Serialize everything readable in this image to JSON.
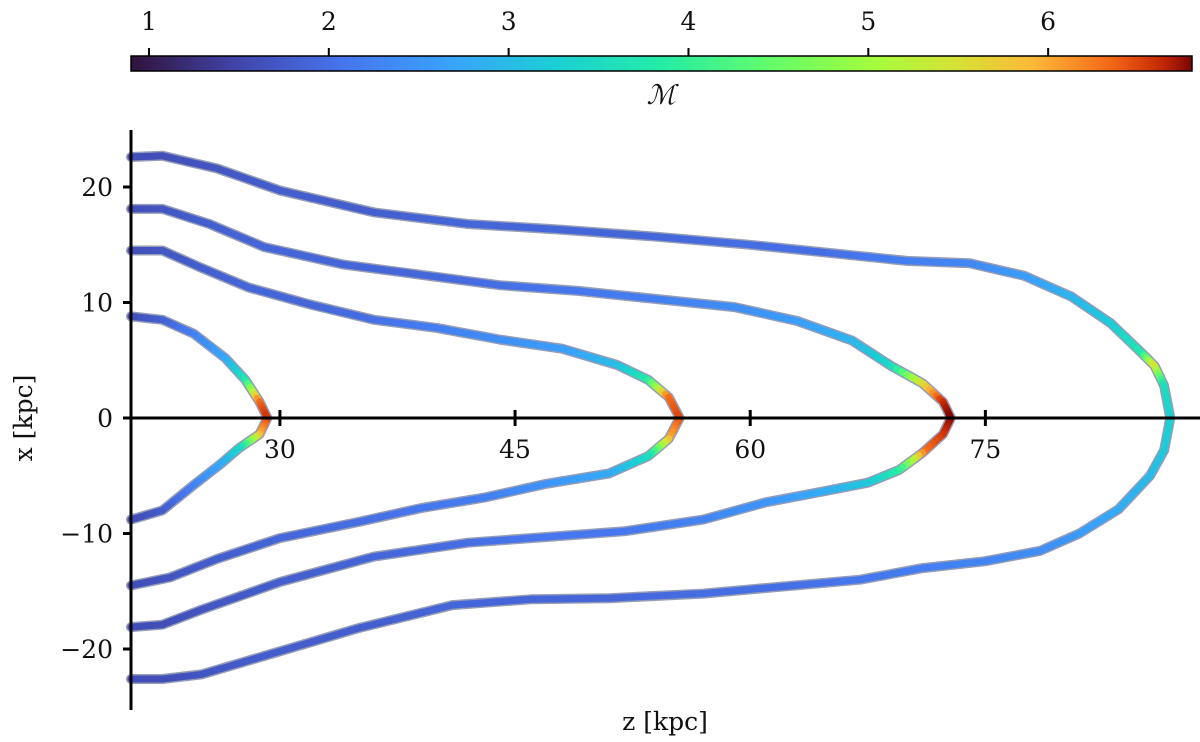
{
  "chart_data": {
    "type": "line",
    "title": "",
    "xlabel": "z [kpc]",
    "ylabel": "x [kpc]",
    "xlim": [
      20.5,
      88.5
    ],
    "ylim": [
      -25,
      25
    ],
    "x_ticks": [
      30,
      45,
      60,
      75
    ],
    "y_ticks": [
      20,
      10,
      0,
      -10,
      -20
    ],
    "y_tick_labels": [
      "20",
      "10",
      "0",
      "−10",
      "−20"
    ],
    "grid": false,
    "colorbar": {
      "label": "ℳ",
      "range": [
        0.9,
        6.8
      ],
      "ticks": [
        1,
        2,
        3,
        4,
        5,
        6
      ],
      "colormap": "turbo",
      "placement": "top"
    },
    "series": [
      {
        "tip_z": 29.2,
        "points": [
          [
            20.5,
            8.8,
            1.6
          ],
          [
            22.5,
            8.5,
            1.8
          ],
          [
            24.5,
            7.3,
            2.2
          ],
          [
            26.5,
            5.2,
            2.7
          ],
          [
            27.8,
            3.3,
            3.6
          ],
          [
            28.7,
            1.4,
            6.3
          ],
          [
            29.2,
            0.0,
            6.6
          ],
          [
            28.7,
            -1.4,
            6.0
          ],
          [
            27.4,
            -2.6,
            3.5
          ],
          [
            26.2,
            -4.0,
            2.8
          ],
          [
            24.5,
            -5.8,
            2.3
          ],
          [
            22.5,
            -8.0,
            1.8
          ],
          [
            20.5,
            -8.8,
            1.6
          ]
        ]
      },
      {
        "tip_z": 55.5,
        "points": [
          [
            20.5,
            14.5,
            1.6
          ],
          [
            22.5,
            14.5,
            1.7
          ],
          [
            25.0,
            13.0,
            1.8
          ],
          [
            28.0,
            11.3,
            1.9
          ],
          [
            32.0,
            9.8,
            1.9
          ],
          [
            36.0,
            8.5,
            2.0
          ],
          [
            40.0,
            7.8,
            2.2
          ],
          [
            44.0,
            6.8,
            2.4
          ],
          [
            48.0,
            6.0,
            2.6
          ],
          [
            51.5,
            4.6,
            3.0
          ],
          [
            53.5,
            3.3,
            3.8
          ],
          [
            54.8,
            1.8,
            6.3
          ],
          [
            55.5,
            0.0,
            6.5
          ],
          [
            54.8,
            -1.8,
            6.0
          ],
          [
            53.5,
            -3.3,
            3.6
          ],
          [
            51.0,
            -4.8,
            2.8
          ],
          [
            47.0,
            -5.7,
            2.5
          ],
          [
            43.0,
            -6.9,
            2.2
          ],
          [
            39.0,
            -7.8,
            2.1
          ],
          [
            35.0,
            -9.0,
            2.0
          ],
          [
            30.0,
            -10.4,
            1.9
          ],
          [
            26.0,
            -12.2,
            1.8
          ],
          [
            23.0,
            -13.8,
            1.7
          ],
          [
            20.5,
            -14.5,
            1.6
          ]
        ]
      },
      {
        "tip_z": 72.8,
        "points": [
          [
            20.5,
            18.1,
            1.6
          ],
          [
            22.5,
            18.1,
            1.7
          ],
          [
            25.5,
            16.8,
            1.8
          ],
          [
            29.0,
            14.8,
            1.9
          ],
          [
            34.0,
            13.3,
            1.9
          ],
          [
            39.0,
            12.4,
            1.9
          ],
          [
            44.0,
            11.5,
            2.0
          ],
          [
            49.0,
            11.0,
            2.1
          ],
          [
            54.0,
            10.3,
            2.2
          ],
          [
            59.0,
            9.6,
            2.4
          ],
          [
            63.0,
            8.4,
            2.6
          ],
          [
            66.5,
            6.7,
            2.9
          ],
          [
            69.0,
            4.5,
            3.4
          ],
          [
            71.0,
            3.0,
            5.5
          ],
          [
            72.3,
            1.4,
            6.6
          ],
          [
            72.8,
            0.0,
            6.8
          ],
          [
            72.3,
            -1.4,
            6.6
          ],
          [
            71.0,
            -3.0,
            6.3
          ],
          [
            69.5,
            -4.5,
            4.0
          ],
          [
            67.5,
            -5.6,
            3.2
          ],
          [
            64.5,
            -6.4,
            2.8
          ],
          [
            61.0,
            -7.3,
            2.5
          ],
          [
            57.0,
            -8.8,
            2.3
          ],
          [
            52.0,
            -9.8,
            2.1
          ],
          [
            47.0,
            -10.3,
            2.1
          ],
          [
            42.0,
            -10.8,
            2.0
          ],
          [
            36.0,
            -12.0,
            1.9
          ],
          [
            30.0,
            -14.2,
            1.8
          ],
          [
            25.0,
            -16.6,
            1.7
          ],
          [
            22.5,
            -17.9,
            1.6
          ],
          [
            20.5,
            -18.1,
            1.6
          ]
        ]
      },
      {
        "tip_z": 86.8,
        "points": [
          [
            20.5,
            22.6,
            1.6
          ],
          [
            22.5,
            22.7,
            1.6
          ],
          [
            26.0,
            21.6,
            1.7
          ],
          [
            30.0,
            19.7,
            1.8
          ],
          [
            36.0,
            17.8,
            1.8
          ],
          [
            42.0,
            16.8,
            1.9
          ],
          [
            48.0,
            16.3,
            1.9
          ],
          [
            54.0,
            15.7,
            1.9
          ],
          [
            60.0,
            15.0,
            2.0
          ],
          [
            65.0,
            14.3,
            2.0
          ],
          [
            70.0,
            13.6,
            2.2
          ],
          [
            74.0,
            13.4,
            2.3
          ],
          [
            77.5,
            12.3,
            2.6
          ],
          [
            80.5,
            10.5,
            2.9
          ],
          [
            83.0,
            8.2,
            3.2
          ],
          [
            85.0,
            5.6,
            3.7
          ],
          [
            85.8,
            4.5,
            5.6
          ],
          [
            86.4,
            2.8,
            3.6
          ],
          [
            86.8,
            0.0,
            3.3
          ],
          [
            86.4,
            -2.8,
            3.2
          ],
          [
            85.5,
            -5.0,
            3.0
          ],
          [
            83.5,
            -7.9,
            2.8
          ],
          [
            81.0,
            -10.0,
            2.6
          ],
          [
            78.5,
            -11.5,
            2.4
          ],
          [
            75.0,
            -12.4,
            2.3
          ],
          [
            71.0,
            -13.0,
            2.2
          ],
          [
            67.0,
            -14.0,
            2.1
          ],
          [
            62.0,
            -14.6,
            2.0
          ],
          [
            57.0,
            -15.2,
            2.0
          ],
          [
            51.0,
            -15.6,
            1.9
          ],
          [
            46.0,
            -15.7,
            1.9
          ],
          [
            41.0,
            -16.2,
            1.9
          ],
          [
            35.0,
            -18.2,
            1.8
          ],
          [
            29.0,
            -20.6,
            1.8
          ],
          [
            25.0,
            -22.2,
            1.7
          ],
          [
            22.5,
            -22.6,
            1.6
          ],
          [
            20.5,
            -22.6,
            1.6
          ]
        ]
      }
    ]
  }
}
